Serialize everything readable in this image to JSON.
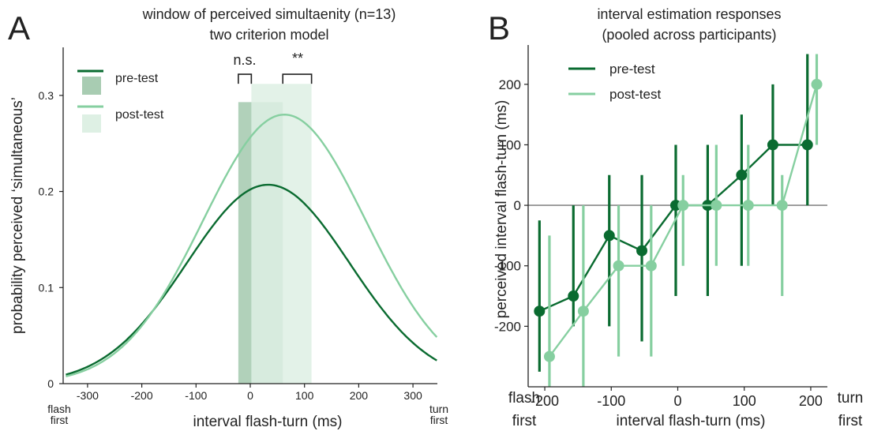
{
  "colors": {
    "pre": "#0a6b30",
    "post": "#86cfa0",
    "pre_band": "#a8ccb2",
    "post_band": "#def0e4",
    "axis": "#222222",
    "zero": "#888888"
  },
  "panelA": {
    "letter": "A",
    "title_line1": "window of perceived simultaenity (n=13)",
    "title_line2": "two criterion model",
    "xlabel": "interval flash-turn (ms)",
    "ylabel": "probability perceived ‘simultaneous’",
    "left_end_line1": "flash",
    "left_end_line2": "first",
    "right_end_line1": "turn",
    "right_end_line2": "first",
    "legend_pre": "pre-test",
    "legend_post": "post-test",
    "sig_left": "n.s.",
    "sig_right": "**"
  },
  "panelB": {
    "letter": "B",
    "title_line1": "interval estimation responses",
    "title_line2": "(pooled across participants)",
    "xlabel": "interval flash-turn (ms)",
    "ylabel": "perceived interval flash-turn (ms)",
    "left_end_line1": "flash",
    "left_end_line2": "first",
    "right_end_line1": "turn",
    "right_end_line2": "first",
    "legend_pre": "pre-test",
    "legend_post": "post-test"
  },
  "chart_data": [
    {
      "type": "line",
      "panel": "A",
      "title": "window of perceived simultaenity (n=13) two criterion model",
      "xlabel": "interval flash-turn (ms)",
      "ylabel": "probability perceived ‘simultaneous’",
      "xlim": [
        -345,
        345
      ],
      "ylim": [
        0,
        0.35
      ],
      "xticks": [
        -300,
        -200,
        -100,
        0,
        100,
        200,
        300
      ],
      "yticks": [
        0,
        0.1,
        0.2,
        0.3
      ],
      "ytick_labels": [
        "0",
        "0.1",
        "0.2",
        "0.3"
      ],
      "series": [
        {
          "name": "pre-test",
          "peak_x": 33,
          "peak_y": 0.207,
          "sigma": 150,
          "base": 0.0
        },
        {
          "name": "post-test",
          "peak_x": 63,
          "peak_y": 0.28,
          "sigma": 150,
          "base": 0.0
        }
      ],
      "bands": [
        {
          "name": "pre-test",
          "x0": -22,
          "x1": 60,
          "height": 0.293
        },
        {
          "name": "post-test",
          "x0": 2,
          "x1": 113,
          "height": 0.312
        }
      ],
      "brackets": [
        {
          "label": "n.s.",
          "x0": -22,
          "x1": 2,
          "y": 0.322
        },
        {
          "label": "**",
          "x0": 60,
          "x1": 113,
          "y": 0.322
        }
      ],
      "legend": "top-left"
    },
    {
      "type": "line",
      "panel": "B",
      "title": "interval estimation responses (pooled across participants)",
      "xlabel": "interval flash-turn (ms)",
      "ylabel": "perceived interval flash-turn (ms)",
      "xlim": [
        -225,
        225
      ],
      "ylim": [
        -300,
        265
      ],
      "xticks": [
        -200,
        -100,
        0,
        100,
        200
      ],
      "yticks": [
        -200,
        -100,
        0,
        100,
        200
      ],
      "series": [
        {
          "name": "pre-test",
          "x": [
            -208,
            -157,
            -103,
            -54,
            -3,
            45,
            96,
            143,
            195
          ],
          "y": [
            -175,
            -150,
            -50,
            -75,
            0,
            0,
            50,
            100,
            100
          ],
          "err_low": [
            -275,
            -200,
            -200,
            -225,
            -150,
            -150,
            -100,
            0,
            0
          ],
          "err_high": [
            -25,
            0,
            50,
            50,
            100,
            100,
            150,
            200,
            250
          ]
        },
        {
          "name": "post-test",
          "x": [
            -193,
            -142,
            -89,
            -40,
            8,
            58,
            106,
            157,
            209
          ],
          "y": [
            -250,
            -175,
            -100,
            -100,
            0,
            0,
            0,
            0,
            200
          ],
          "err_low": [
            -300,
            -300,
            -250,
            -250,
            -100,
            -100,
            -100,
            -150,
            100
          ],
          "err_high": [
            -50,
            0,
            0,
            0,
            50,
            100,
            100,
            50,
            250
          ]
        }
      ],
      "legend": "top-left"
    }
  ]
}
